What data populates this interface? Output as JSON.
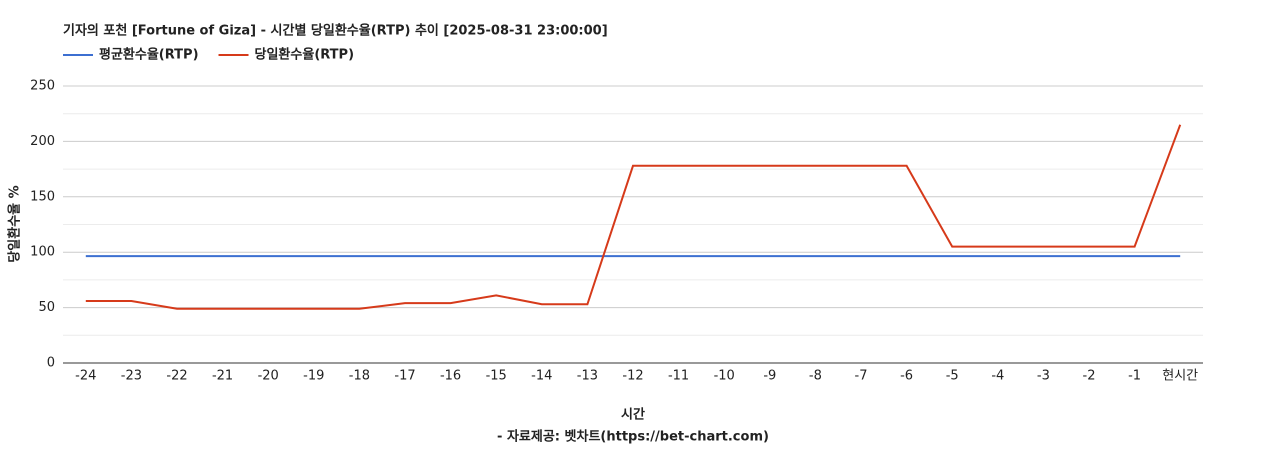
{
  "chart_data": {
    "type": "line",
    "title": "기자의 포천 [Fortune of Giza] - 시간별 당일환수율(RTP) 추이 [2025-08-31 23:00:00]",
    "y_label": "당일환수율 %",
    "x_label": "시간",
    "source": "- 자료제공: 벳차트(https://bet-chart.com)",
    "categories": [
      "-24",
      "-23",
      "-22",
      "-21",
      "-20",
      "-19",
      "-18",
      "-17",
      "-16",
      "-15",
      "-14",
      "-13",
      "-12",
      "-11",
      "-10",
      "-9",
      "-8",
      "-7",
      "-6",
      "-5",
      "-4",
      "-3",
      "-2",
      "-1",
      "현시간"
    ],
    "series": [
      {
        "name": "평균환수율(RTP)",
        "color": "#3c6fd1",
        "values": [
          96.5,
          96.5,
          96.5,
          96.5,
          96.5,
          96.5,
          96.5,
          96.5,
          96.5,
          96.5,
          96.5,
          96.5,
          96.5,
          96.5,
          96.5,
          96.5,
          96.5,
          96.5,
          96.5,
          96.5,
          96.5,
          96.5,
          96.5,
          96.5,
          96.5
        ]
      },
      {
        "name": "당일환수율(RTP)",
        "color": "#d63a1a",
        "values": [
          56,
          56,
          49,
          49,
          49,
          49,
          49,
          54,
          54,
          61,
          53,
          53,
          178,
          178,
          178,
          178,
          178,
          178,
          178,
          105,
          105,
          105,
          105,
          105,
          215
        ]
      }
    ],
    "ylim": [
      0,
      250
    ],
    "yticks": [
      0,
      50,
      100,
      150,
      200,
      250
    ],
    "minor_yticks": [
      25,
      75,
      125,
      175,
      225
    ],
    "grid": true,
    "legend": "top-left"
  }
}
